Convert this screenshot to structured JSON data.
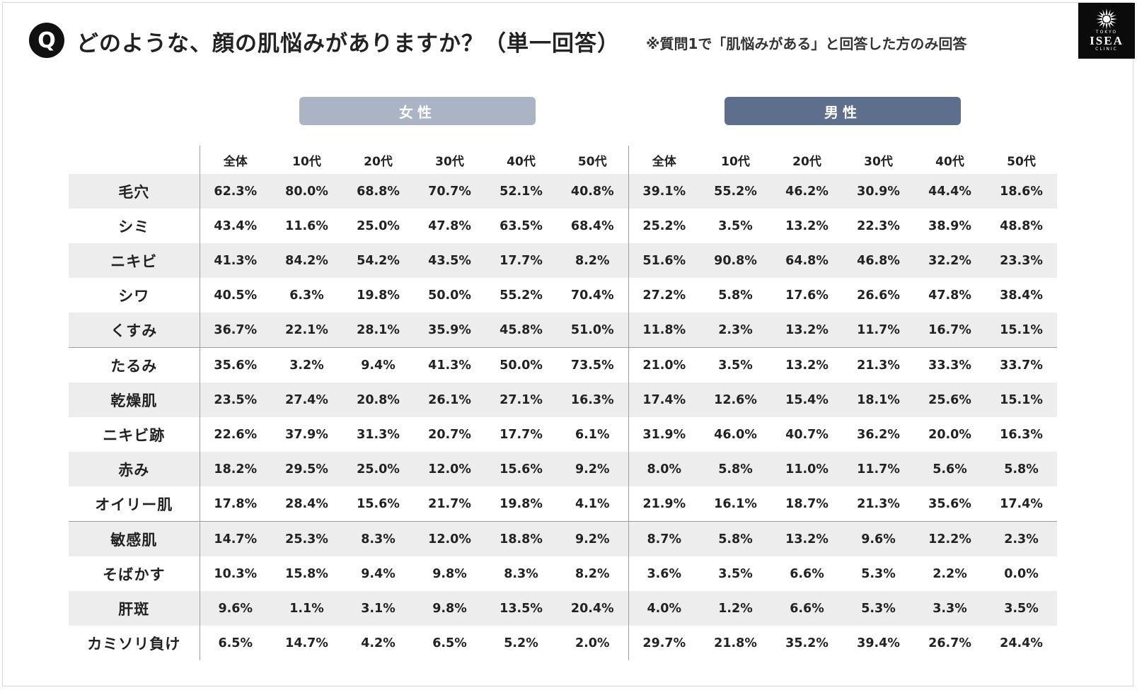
{
  "header": {
    "q_badge": "Q",
    "title": "どのような、顔の肌悩みがありますか？（単一回答）",
    "note": "※質問1で「肌悩みがある」と回答した方のみ回答"
  },
  "logo": {
    "small_top": "TOKYO",
    "brand": "ISEA",
    "small_bottom": "CLINIC"
  },
  "groups": {
    "female": "女性",
    "male": "男性"
  },
  "columns": [
    "全体",
    "10代",
    "20代",
    "30代",
    "40代",
    "50代",
    "全体",
    "10代",
    "20代",
    "30代",
    "40代",
    "50代"
  ],
  "rows": [
    {
      "label": "毛穴",
      "values": [
        "62.3%",
        "80.0%",
        "68.8%",
        "70.7%",
        "52.1%",
        "40.8%",
        "39.1%",
        "55.2%",
        "46.2%",
        "30.9%",
        "44.4%",
        "18.6%"
      ]
    },
    {
      "label": "シミ",
      "values": [
        "43.4%",
        "11.6%",
        "25.0%",
        "47.8%",
        "63.5%",
        "68.4%",
        "25.2%",
        "3.5%",
        "13.2%",
        "22.3%",
        "38.9%",
        "48.8%"
      ]
    },
    {
      "label": "ニキビ",
      "values": [
        "41.3%",
        "84.2%",
        "54.2%",
        "43.5%",
        "17.7%",
        "8.2%",
        "51.6%",
        "90.8%",
        "64.8%",
        "46.8%",
        "32.2%",
        "23.3%"
      ]
    },
    {
      "label": "シワ",
      "values": [
        "40.5%",
        "6.3%",
        "19.8%",
        "50.0%",
        "55.2%",
        "70.4%",
        "27.2%",
        "5.8%",
        "17.6%",
        "26.6%",
        "47.8%",
        "38.4%"
      ]
    },
    {
      "label": "くすみ",
      "values": [
        "36.7%",
        "22.1%",
        "28.1%",
        "35.9%",
        "45.8%",
        "51.0%",
        "11.8%",
        "2.3%",
        "13.2%",
        "11.7%",
        "16.7%",
        "15.1%"
      ]
    },
    {
      "label": "たるみ",
      "values": [
        "35.6%",
        "3.2%",
        "9.4%",
        "41.3%",
        "50.0%",
        "73.5%",
        "21.0%",
        "3.5%",
        "13.2%",
        "21.3%",
        "33.3%",
        "33.7%"
      ]
    },
    {
      "label": "乾燥肌",
      "values": [
        "23.5%",
        "27.4%",
        "20.8%",
        "26.1%",
        "27.1%",
        "16.3%",
        "17.4%",
        "12.6%",
        "15.4%",
        "18.1%",
        "25.6%",
        "15.1%"
      ]
    },
    {
      "label": "ニキビ跡",
      "values": [
        "22.6%",
        "37.9%",
        "31.3%",
        "20.7%",
        "17.7%",
        "6.1%",
        "31.9%",
        "46.0%",
        "40.7%",
        "36.2%",
        "20.0%",
        "16.3%"
      ]
    },
    {
      "label": "赤み",
      "values": [
        "18.2%",
        "29.5%",
        "25.0%",
        "12.0%",
        "15.6%",
        "9.2%",
        "8.0%",
        "5.8%",
        "11.0%",
        "11.7%",
        "5.6%",
        "5.8%"
      ]
    },
    {
      "label": "オイリー肌",
      "values": [
        "17.8%",
        "28.4%",
        "15.6%",
        "21.7%",
        "19.8%",
        "4.1%",
        "21.9%",
        "16.1%",
        "18.7%",
        "21.3%",
        "35.6%",
        "17.4%"
      ]
    },
    {
      "label": "敏感肌",
      "values": [
        "14.7%",
        "25.3%",
        "8.3%",
        "12.0%",
        "18.8%",
        "9.2%",
        "8.7%",
        "5.8%",
        "13.2%",
        "9.6%",
        "12.2%",
        "2.3%"
      ]
    },
    {
      "label": "そばかす",
      "values": [
        "10.3%",
        "15.8%",
        "9.4%",
        "9.8%",
        "8.3%",
        "8.2%",
        "3.6%",
        "3.5%",
        "6.6%",
        "5.3%",
        "2.2%",
        "0.0%"
      ]
    },
    {
      "label": "肝斑",
      "values": [
        "9.6%",
        "1.1%",
        "3.1%",
        "9.8%",
        "13.5%",
        "20.4%",
        "4.0%",
        "1.2%",
        "6.6%",
        "5.3%",
        "3.3%",
        "3.5%"
      ]
    },
    {
      "label": "カミソリ負け",
      "values": [
        "6.5%",
        "14.7%",
        "4.2%",
        "6.5%",
        "5.2%",
        "2.0%",
        "29.7%",
        "21.8%",
        "35.2%",
        "39.4%",
        "26.7%",
        "24.4%"
      ]
    }
  ]
}
